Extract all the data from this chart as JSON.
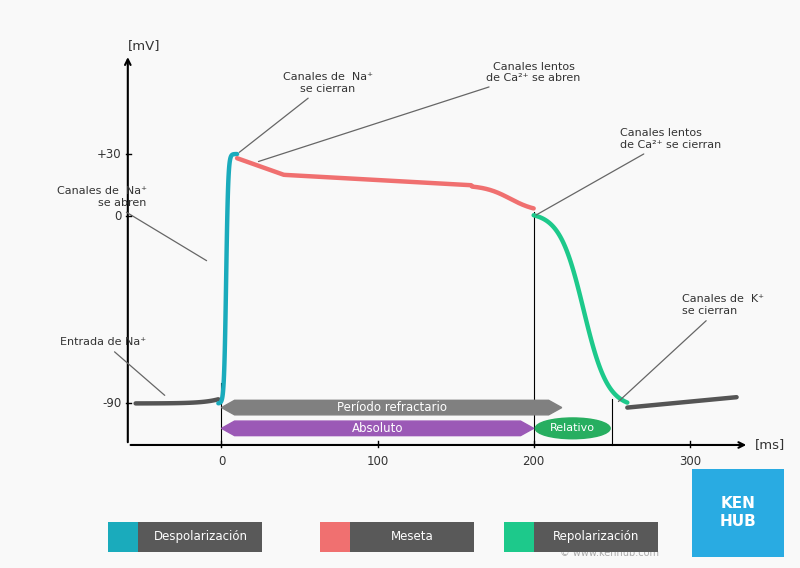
{
  "background_color": "#f9f9f9",
  "ylabel": "[mV]",
  "xlabel": "[ms]",
  "yticks": [
    -90,
    0,
    30
  ],
  "ytick_labels": [
    "-90",
    "0",
    "+30"
  ],
  "xticks": [
    0,
    100,
    200,
    300
  ],
  "xlim": [
    -65,
    345
  ],
  "ylim": [
    -120,
    85
  ],
  "resting_color": "#555555",
  "depol_color": "#1AABBC",
  "plateau_color": "#F07070",
  "repol_color": "#1DC98B",
  "periodo_refractario_color": "#808080",
  "absoluto_color": "#9B59B6",
  "relativo_color": "#27AE60",
  "legend_items": [
    {
      "label": "Despolarización",
      "color": "#1AABBC"
    },
    {
      "label": "Meseta",
      "color": "#F07070"
    },
    {
      "label": "Repolarización",
      "color": "#1DC98B"
    }
  ],
  "kenhub_color": "#29ABE2"
}
